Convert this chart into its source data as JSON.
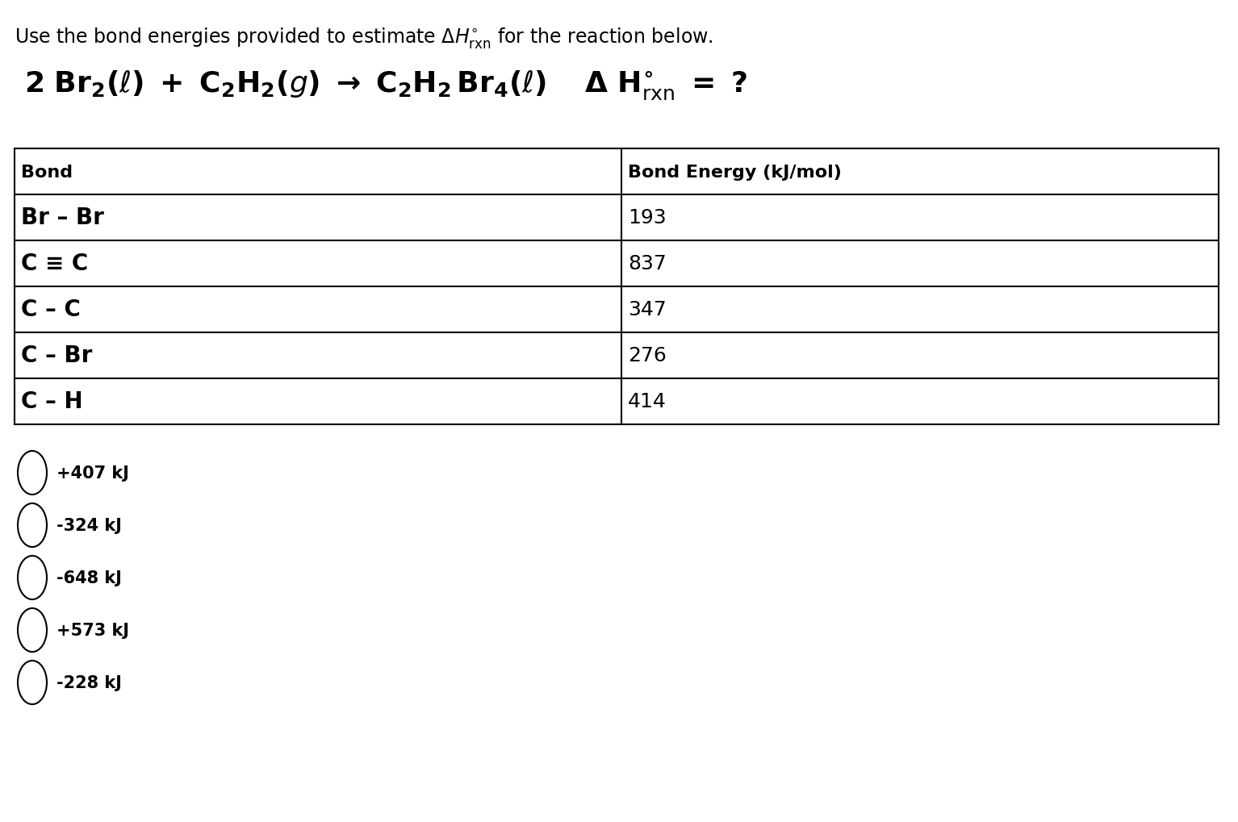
{
  "background_color": "#ffffff",
  "table_header": [
    "Bond",
    "Bond Energy (kJ/mol)"
  ],
  "table_rows": [
    [
      "Br – Br",
      "193"
    ],
    [
      "C ≡ C",
      "837"
    ],
    [
      "C – C",
      "347"
    ],
    [
      "C – Br",
      "276"
    ],
    [
      "C – H",
      "414"
    ]
  ],
  "answer_choices": [
    "+407 kJ",
    "-324 kJ",
    "-648 kJ",
    "+573 kJ",
    "-228 kJ"
  ],
  "font_size_instruction": 17,
  "font_size_equation": 26,
  "font_size_table_header": 16,
  "font_size_table_bond": 20,
  "font_size_table_energy": 18,
  "font_size_answers": 15
}
